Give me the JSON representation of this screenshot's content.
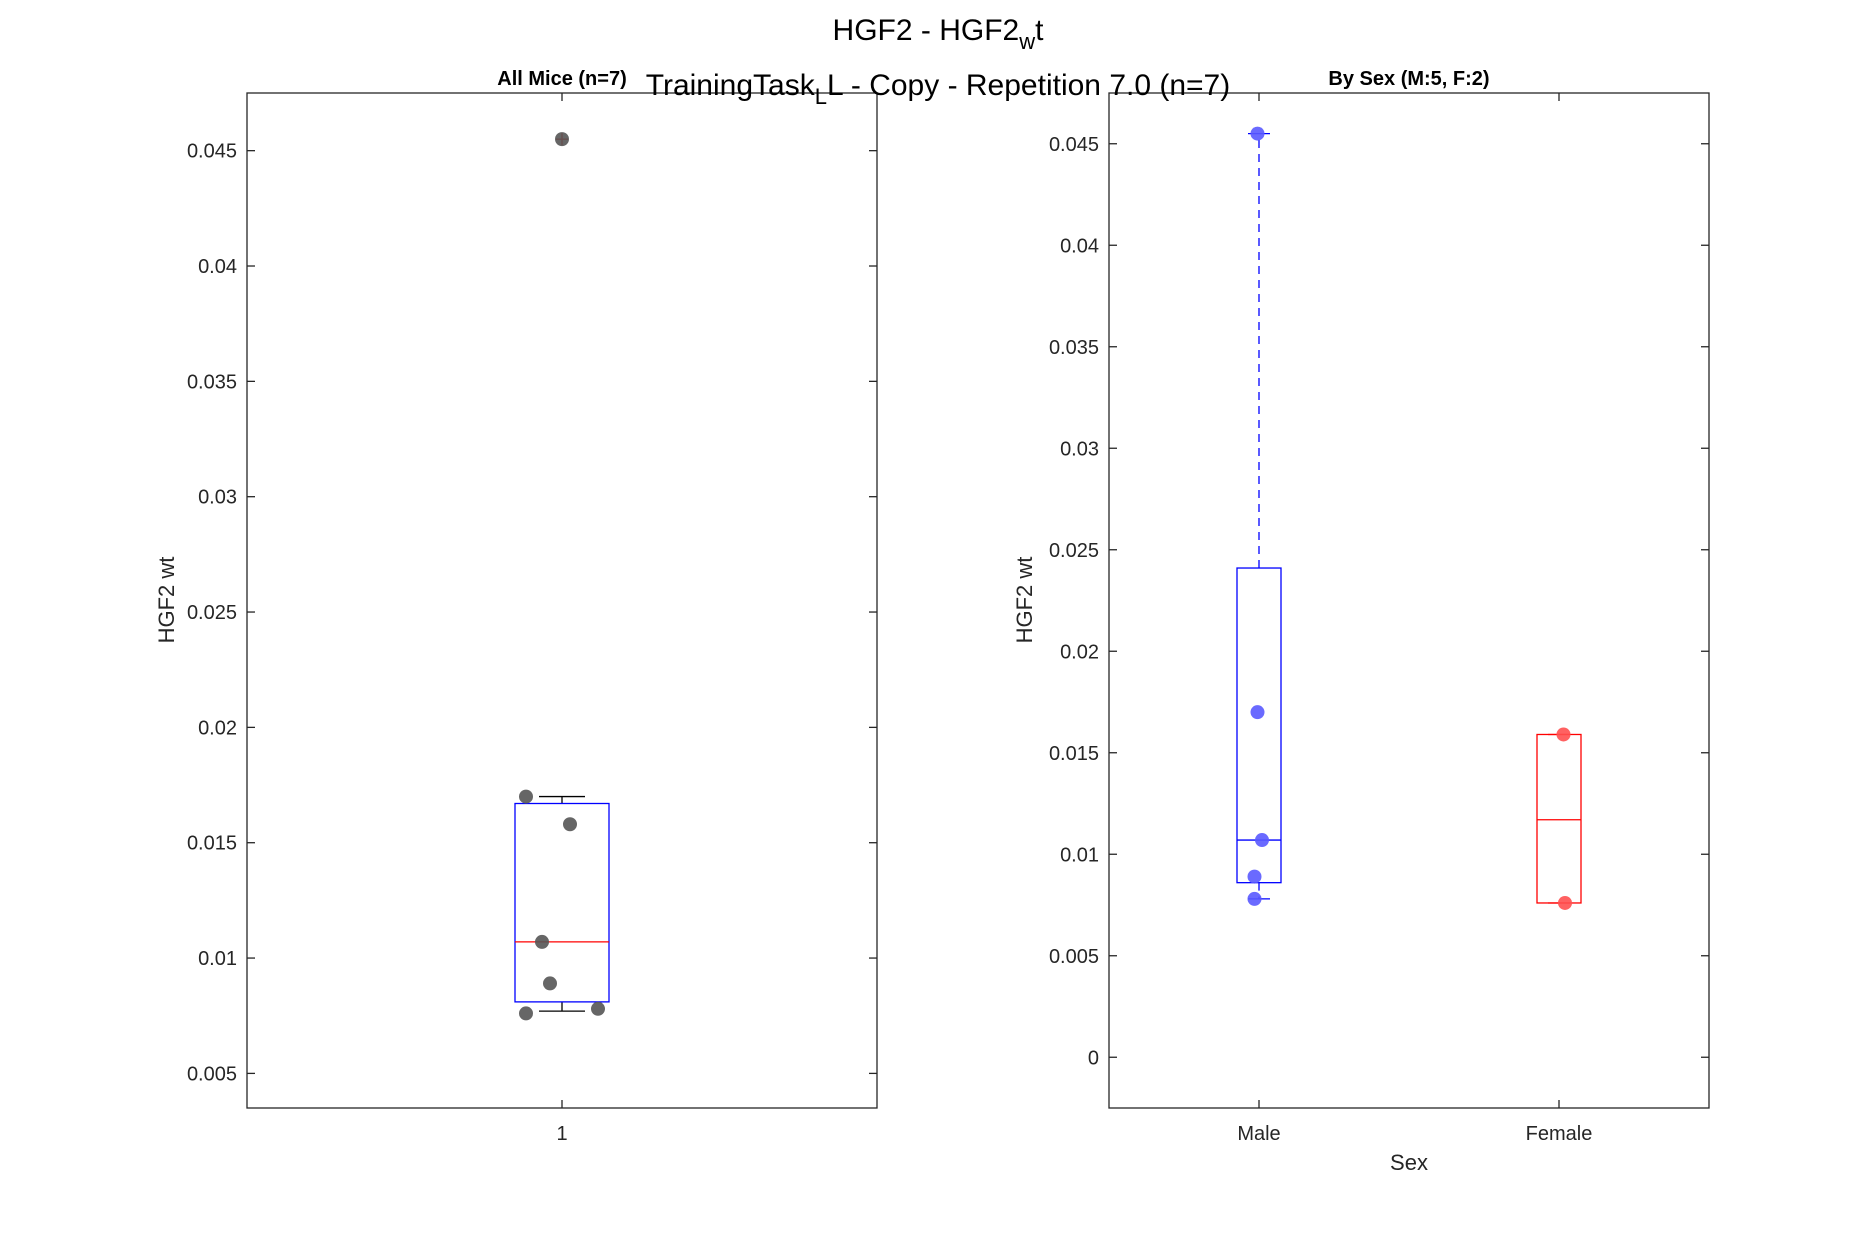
{
  "figure": {
    "title_line1": "HGF2 - HGF2",
    "title_line1_sub": "w",
    "title_line1_tail": "t",
    "title_line2_pre": "TrainingTask",
    "title_line2_sub": "L",
    "title_line2_tail": "L - Copy - Repetition 7.0 (n=7)"
  },
  "chart_data": [
    {
      "type": "box",
      "title": "All Mice (n=7)",
      "ylabel": "HGF2 wt",
      "xlabel": "",
      "categories": [
        "1"
      ],
      "ylim": [
        0.0035,
        0.0475
      ],
      "yticks": [
        0.005,
        0.01,
        0.015,
        0.02,
        0.025,
        0.03,
        0.035,
        0.04,
        0.045
      ],
      "ytick_labels": [
        "0.005",
        "0.01",
        "0.015",
        "0.02",
        "0.025",
        "0.03",
        "0.035",
        "0.04",
        "0.045"
      ],
      "boxes": [
        {
          "category": "1",
          "q1": 0.0081,
          "median": 0.0107,
          "q3": 0.0167,
          "whisker_low": 0.0077,
          "whisker_high": 0.017,
          "outliers": [
            0.0455
          ],
          "box_color": "#0000ff",
          "median_color": "#ff0000",
          "whisker_color": "#000000",
          "outlier_color": "#ff0000"
        }
      ],
      "points": [
        {
          "category": "1",
          "jitter": 0.0,
          "y": 0.0455
        },
        {
          "category": "1",
          "jitter": -0.09,
          "y": 0.017
        },
        {
          "category": "1",
          "jitter": 0.02,
          "y": 0.0158
        },
        {
          "category": "1",
          "jitter": -0.05,
          "y": 0.0107
        },
        {
          "category": "1",
          "jitter": -0.03,
          "y": 0.0089
        },
        {
          "category": "1",
          "jitter": 0.09,
          "y": 0.0078
        },
        {
          "category": "1",
          "jitter": -0.09,
          "y": 0.0076
        }
      ],
      "point_color": "#555555"
    },
    {
      "type": "box",
      "title": "By Sex (M:5, F:2)",
      "ylabel": "HGF2 wt",
      "xlabel": "Sex",
      "categories": [
        "Male",
        "Female"
      ],
      "ylim": [
        -0.0025,
        0.0475
      ],
      "yticks": [
        0,
        0.005,
        0.01,
        0.015,
        0.02,
        0.025,
        0.03,
        0.035,
        0.04,
        0.045
      ],
      "ytick_labels": [
        "0",
        "0.005",
        "0.01",
        "0.015",
        "0.02",
        "0.025",
        "0.03",
        "0.035",
        "0.04",
        "0.045"
      ],
      "boxes": [
        {
          "category": "Male",
          "q1": 0.0086,
          "median": 0.0107,
          "q3": 0.0241,
          "whisker_low": 0.0078,
          "whisker_high": 0.0455,
          "outliers": [],
          "box_color": "#0000ff",
          "median_color": "#0000ff",
          "whisker_color": "#0000ff"
        },
        {
          "category": "Female",
          "q1": 0.0076,
          "median": 0.0117,
          "q3": 0.0159,
          "whisker_low": 0.0076,
          "whisker_high": 0.0159,
          "outliers": [],
          "box_color": "#ff0000",
          "median_color": "#ff0000",
          "whisker_color": "#ff0000"
        }
      ],
      "points": [
        {
          "category": "Male",
          "jitter": -0.01,
          "y": 0.0455,
          "color": "#5a5aff"
        },
        {
          "category": "Male",
          "jitter": -0.01,
          "y": 0.017,
          "color": "#5a5aff"
        },
        {
          "category": "Male",
          "jitter": 0.02,
          "y": 0.0107,
          "color": "#5a5aff"
        },
        {
          "category": "Male",
          "jitter": -0.03,
          "y": 0.0089,
          "color": "#5a5aff"
        },
        {
          "category": "Male",
          "jitter": -0.03,
          "y": 0.0078,
          "color": "#5a5aff"
        },
        {
          "category": "Female",
          "jitter": 0.03,
          "y": 0.0159,
          "color": "#ff5050"
        },
        {
          "category": "Female",
          "jitter": 0.04,
          "y": 0.0076,
          "color": "#ff5050"
        }
      ]
    }
  ]
}
